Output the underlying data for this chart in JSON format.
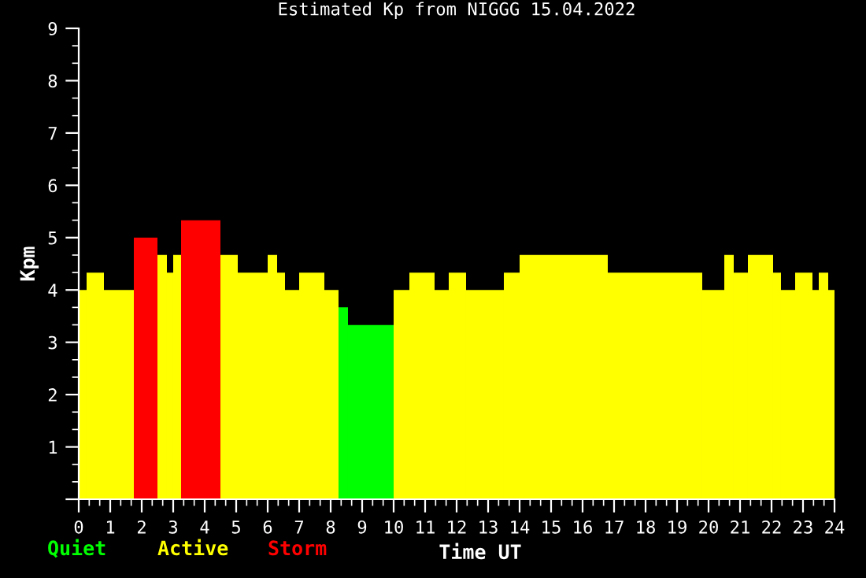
{
  "chart_data": {
    "type": "histogram",
    "title": "Estimated Kp from NIGGG 15.04.2022",
    "xlabel": "Time UT",
    "ylabel": "Kpm",
    "bins": [
      0,
      0.25,
      0.8,
      1.75,
      2.5,
      2.8,
      3.0,
      3.25,
      4.5,
      5.05,
      6.0,
      6.3,
      6.55,
      7.0,
      7.8,
      8.25,
      8.55,
      10,
      10.5,
      11.3,
      11.75,
      12.3,
      13.5,
      14,
      16.8,
      19.8,
      20.5,
      20.8,
      21.25,
      22.05,
      22.3,
      22.75,
      23.3,
      23.5,
      23.8,
      24
    ],
    "series": [
      {
        "name": "Quiet",
        "color": "#00ff00",
        "values": [
          null,
          null,
          null,
          null,
          null,
          null,
          null,
          null,
          null,
          null,
          null,
          null,
          null,
          null,
          null,
          3.67,
          3.33,
          null,
          null,
          null,
          null,
          null,
          null,
          null,
          null,
          null,
          null,
          null,
          null,
          null,
          null,
          null,
          null,
          null,
          null
        ]
      },
      {
        "name": "Active",
        "color": "#ffff00",
        "values": [
          4,
          4.33,
          4,
          null,
          4.67,
          4.33,
          4.67,
          null,
          4.67,
          4.33,
          4.67,
          4.33,
          4,
          4.33,
          4,
          null,
          null,
          4,
          4.33,
          4,
          4.33,
          4,
          4.33,
          4.67,
          4.33,
          4,
          4.67,
          4.33,
          4.67,
          4.33,
          4,
          4.33,
          4,
          4.33,
          4
        ]
      },
      {
        "name": "Storm",
        "color": "#ff0000",
        "values": [
          null,
          null,
          null,
          5,
          null,
          null,
          null,
          5.33,
          null,
          null,
          null,
          null,
          null,
          null,
          null,
          null,
          null,
          null,
          null,
          null,
          null,
          null,
          null,
          null,
          null,
          null,
          null,
          null,
          null,
          null,
          null,
          null,
          null,
          null,
          null
        ]
      }
    ],
    "xlim": [
      0,
      24
    ],
    "xticks": [
      0,
      1,
      2,
      3,
      4,
      5,
      6,
      7,
      8,
      9,
      10,
      11,
      12,
      13,
      14,
      15,
      16,
      17,
      18,
      19,
      20,
      21,
      22,
      23,
      24
    ],
    "ylim": [
      0,
      9
    ],
    "yticks": [
      {
        "value": 0,
        "label": null
      },
      1,
      2,
      3,
      4,
      5,
      6,
      7,
      8,
      9
    ],
    "grid": false,
    "legend": "bottom left"
  }
}
